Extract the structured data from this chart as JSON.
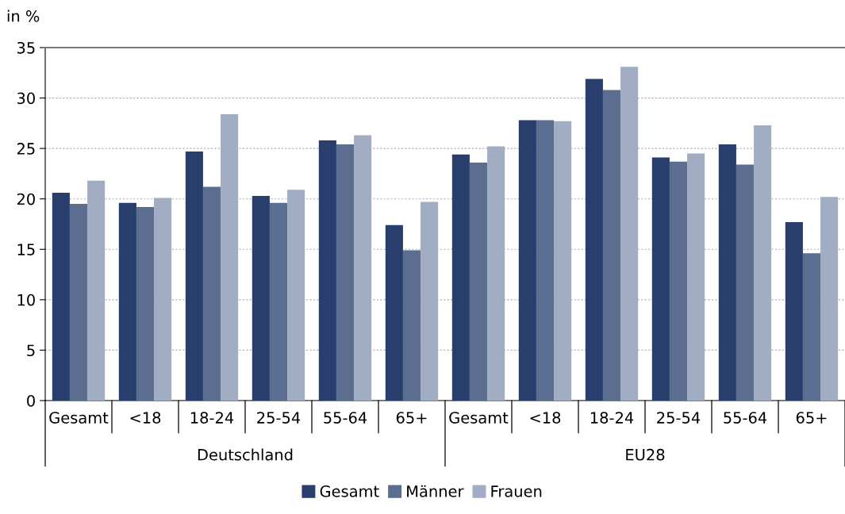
{
  "chart_data": {
    "type": "bar",
    "ylabel": "in %",
    "categories": [
      "Gesamt",
      "<18",
      "18-24",
      "25-54",
      "55-64",
      "65+",
      "Gesamt",
      "<18",
      "18-24",
      "25-54",
      "55-64",
      "65+"
    ],
    "series": [
      {
        "name": "Gesamt",
        "color": "#283f6e",
        "values": [
          20.6,
          19.6,
          24.7,
          20.3,
          25.8,
          17.4,
          24.4,
          27.8,
          31.9,
          24.1,
          25.4,
          17.7
        ]
      },
      {
        "name": "Männer",
        "color": "#5c6e8f",
        "values": [
          19.5,
          19.2,
          21.2,
          19.6,
          25.4,
          14.9,
          23.6,
          27.8,
          30.8,
          23.7,
          23.4,
          14.6
        ]
      },
      {
        "name": "Frauen",
        "color": "#a1adc3",
        "values": [
          21.8,
          20.1,
          28.4,
          20.9,
          26.3,
          19.7,
          25.2,
          27.7,
          33.1,
          24.5,
          27.3,
          20.2
        ]
      }
    ],
    "annotations": [
      "Deutschland",
      "EU28"
    ],
    "ylim": [
      0,
      35
    ],
    "yticks": [
      0,
      5,
      10,
      15,
      20,
      25,
      30,
      35
    ],
    "grid": "y",
    "legend": "bottom"
  }
}
